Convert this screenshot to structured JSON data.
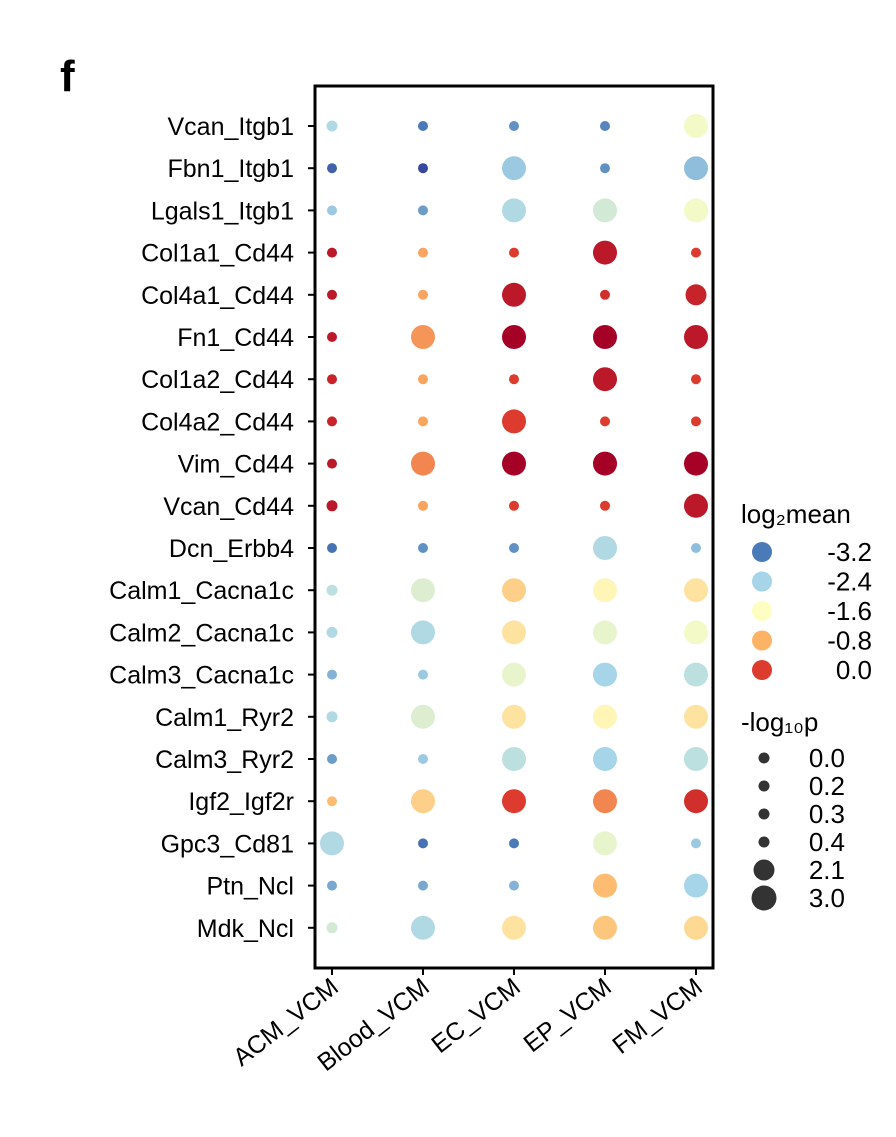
{
  "panel_label": "f",
  "chart_data": {
    "type": "scatter",
    "subtype": "dotplot",
    "title": "",
    "xlabel": "",
    "ylabel": "",
    "categories_x": [
      "ACM_VCM",
      "Blood_VCM",
      "EC_VCM",
      "EP_VCM",
      "FM_VCM"
    ],
    "categories_y": [
      "Vcan_Itgb1",
      "Fbn1_Itgb1",
      "Lgals1_Itgb1",
      "Col1a1_Cd44",
      "Col4a1_Cd44",
      "Fn1_Cd44",
      "Col1a2_Cd44",
      "Col4a2_Cd44",
      "Vim_Cd44",
      "Vcan_Cd44",
      "Dcn_Erbb4",
      "Calm1_Cacna1c",
      "Calm2_Cacna1c",
      "Calm3_Cacna1c",
      "Calm1_Ryr2",
      "Calm3_Ryr2",
      "Igf2_Igf2r",
      "Gpc3_Cd81",
      "Ptn_Ncl",
      "Mdk_Ncl"
    ],
    "color_variable": "log2mean",
    "size_variable": "-log10p",
    "log2mean": [
      [
        -2.3,
        -3.2,
        -3.0,
        -3.1,
        -1.7
      ],
      [
        -3.5,
        -3.8,
        -2.5,
        -3.0,
        -2.6
      ],
      [
        -2.5,
        -2.9,
        -2.3,
        -2.0,
        -1.7
      ],
      [
        0.3,
        -0.7,
        0.0,
        0.3,
        0.0
      ],
      [
        0.3,
        -0.7,
        0.3,
        0.1,
        0.2
      ],
      [
        0.3,
        -0.6,
        0.5,
        0.5,
        0.3
      ],
      [
        0.2,
        -0.7,
        0.0,
        0.3,
        0.0
      ],
      [
        0.2,
        -0.7,
        0.0,
        0.0,
        0.0
      ],
      [
        0.3,
        -0.5,
        0.5,
        0.5,
        0.5
      ],
      [
        0.3,
        -0.7,
        0.0,
        0.0,
        0.3
      ],
      [
        -3.3,
        -3.0,
        -3.0,
        -2.3,
        -2.6
      ],
      [
        -2.2,
        -1.9,
        -1.1,
        -1.5,
        -1.3
      ],
      [
        -2.3,
        -2.3,
        -1.3,
        -1.8,
        -1.7
      ],
      [
        -2.7,
        -2.5,
        -1.8,
        -2.4,
        -2.2
      ],
      [
        -2.3,
        -1.9,
        -1.3,
        -1.5,
        -1.3
      ],
      [
        -2.9,
        -2.5,
        -2.2,
        -2.4,
        -2.2
      ],
      [
        -0.9,
        -1.1,
        0.0,
        -0.5,
        0.1
      ],
      [
        -2.3,
        -3.3,
        -3.2,
        -1.8,
        -2.5
      ],
      [
        -2.8,
        -2.8,
        -2.7,
        -0.9,
        -2.4
      ],
      [
        -2.0,
        -2.3,
        -1.3,
        -1.0,
        -1.2
      ]
    ],
    "neg_log10p": [
      [
        0.0,
        0.0,
        0.0,
        0.0,
        3.0
      ],
      [
        0.0,
        0.0,
        3.0,
        0.0,
        3.0
      ],
      [
        0.0,
        0.0,
        3.0,
        3.0,
        3.0
      ],
      [
        0.0,
        0.0,
        0.0,
        3.0,
        0.0
      ],
      [
        0.0,
        0.0,
        3.0,
        0.0,
        2.1
      ],
      [
        0.0,
        3.0,
        3.0,
        3.0,
        3.0
      ],
      [
        0.0,
        0.0,
        0.0,
        3.0,
        0.0
      ],
      [
        0.0,
        0.0,
        3.0,
        0.0,
        0.0
      ],
      [
        0.0,
        3.0,
        3.0,
        3.0,
        3.0
      ],
      [
        0.2,
        0.0,
        0.0,
        0.0,
        3.0
      ],
      [
        0.0,
        0.0,
        0.0,
        3.0,
        0.0
      ],
      [
        0.0,
        3.0,
        3.0,
        3.0,
        3.0
      ],
      [
        0.0,
        3.0,
        3.0,
        3.0,
        3.0
      ],
      [
        0.0,
        0.0,
        3.0,
        3.0,
        3.0
      ],
      [
        0.0,
        3.0,
        3.0,
        3.0,
        3.0
      ],
      [
        0.0,
        0.0,
        3.0,
        3.0,
        3.0
      ],
      [
        0.0,
        3.0,
        3.0,
        3.0,
        3.0
      ],
      [
        3.0,
        0.0,
        0.0,
        3.0,
        0.0
      ],
      [
        0.0,
        0.0,
        0.0,
        3.0,
        3.0
      ],
      [
        0.0,
        3.0,
        3.0,
        3.0,
        3.0
      ]
    ],
    "legend_color": {
      "title": "log₂mean",
      "entries": [
        {
          "label": "-3.2",
          "value": -3.2,
          "color": "#4a7ab7"
        },
        {
          "label": "-2.4",
          "value": -2.4,
          "color": "#a6d4e8"
        },
        {
          "label": "-1.6",
          "value": -1.6,
          "color": "#fefec2"
        },
        {
          "label": "-0.8",
          "value": -0.8,
          "color": "#fdb366"
        },
        {
          "label": "0.0",
          "value": 0.0,
          "color": "#dc3b2e"
        }
      ],
      "placement": "right"
    },
    "legend_size": {
      "title": "-log₁₀p",
      "entries": [
        {
          "label": "0.0",
          "value": 0.0
        },
        {
          "label": "0.2",
          "value": 0.2
        },
        {
          "label": "0.3",
          "value": 0.3
        },
        {
          "label": "0.4",
          "value": 0.4
        },
        {
          "label": "2.1",
          "value": 2.1
        },
        {
          "label": "3.0",
          "value": 3.0
        }
      ],
      "placement": "right"
    },
    "colormap": "RdYlBu_r",
    "grid": false
  }
}
